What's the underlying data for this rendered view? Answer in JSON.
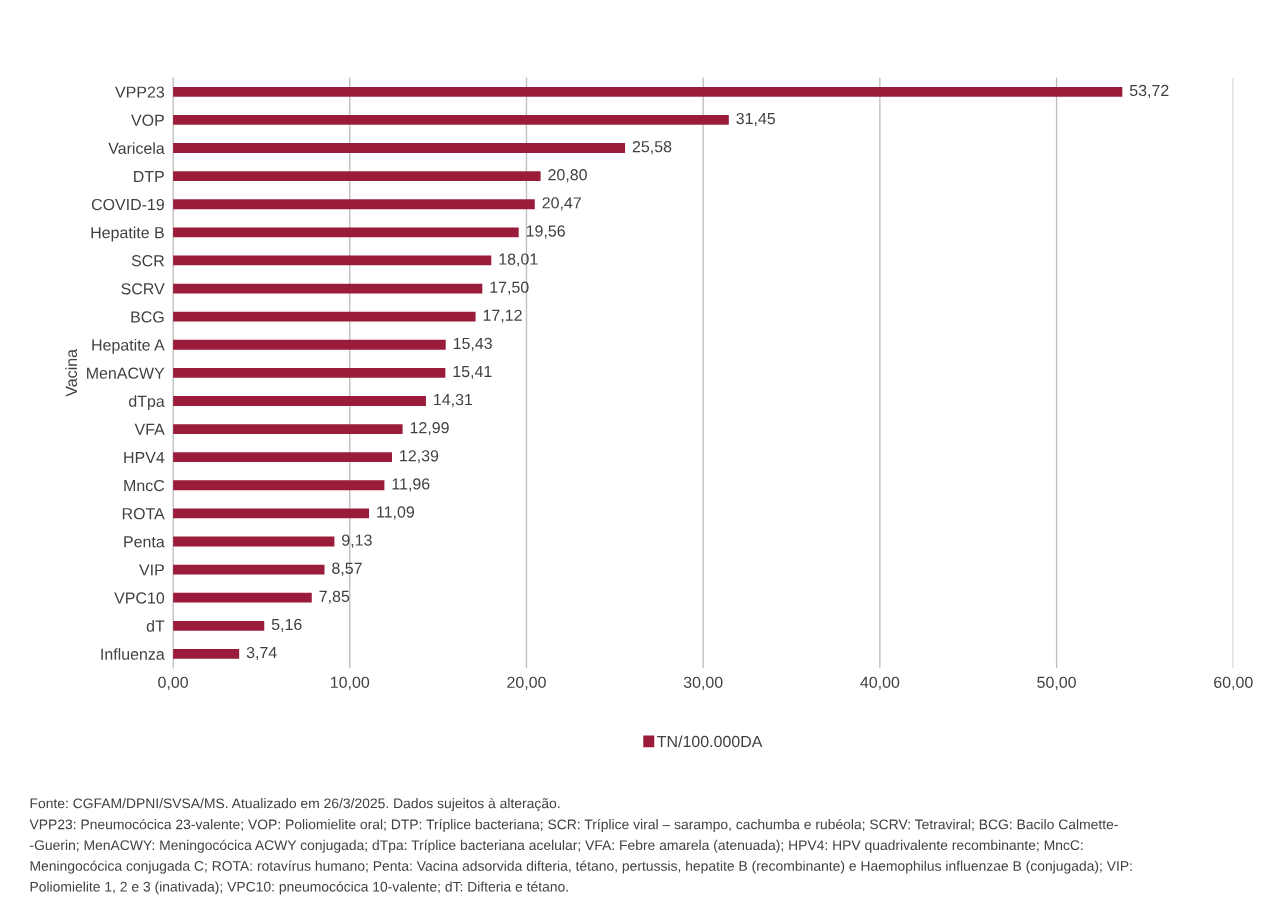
{
  "chart_data": {
    "type": "bar",
    "orientation": "horizontal",
    "ylabel": "Vacina",
    "categories": [
      "VPP23",
      "VOP",
      "Varicela",
      "DTP",
      "COVID-19",
      "Hepatite B",
      "SCR",
      "SCRV",
      "BCG",
      "Hepatite A",
      "MenACWY",
      "dTpa",
      "VFA",
      "HPV4",
      "MncC",
      "ROTA",
      "Penta",
      "VIP",
      "VPC10",
      "dT",
      "Influenza"
    ],
    "series": [
      {
        "name": "TN/100.000DA",
        "color": "#9b1b3a",
        "values": [
          53.72,
          31.45,
          25.58,
          20.8,
          20.47,
          19.56,
          18.01,
          17.5,
          17.12,
          15.43,
          15.41,
          14.31,
          12.99,
          12.39,
          11.96,
          11.09,
          9.13,
          8.57,
          7.85,
          5.16,
          3.74
        ],
        "value_labels": [
          "53,72",
          "31,45",
          "25,58",
          "20,80",
          "20,47",
          "19,56",
          "18,01",
          "17,50",
          "17,12",
          "15,43",
          "15,41",
          "14,31",
          "12,99",
          "12,39",
          "11,96",
          "11,09",
          "9,13",
          "8,57",
          "7,85",
          "5,16",
          "3,74"
        ]
      }
    ],
    "xlim": [
      0,
      60
    ],
    "xticks": [
      {
        "value": 0,
        "label": "0,00"
      },
      {
        "value": 10,
        "label": "10,00"
      },
      {
        "value": 20,
        "label": "20,00"
      },
      {
        "value": 30,
        "label": "30,00"
      },
      {
        "value": 40,
        "label": "40,00"
      },
      {
        "value": 50,
        "label": "50,00"
      },
      {
        "value": 60,
        "label": "60,00"
      }
    ],
    "grid": "x",
    "legend": "bottom",
    "annotations": [
      "Fonte: CGFAM/DPNI/SVSA/MS. Atualizado em 26/3/2025. Dados sujeitos à alteração.",
      "VPP23: Pneumocócica 23-valente; VOP: Poliomielite oral; DTP: Tríplice bacteriana; SCR: Tríplice viral – sarampo, cachumba e rubéola; SCRV: Tetraviral; BCG: Bacilo Calmette-\n-Guerin; MenACWY: Meningocócica ACWY conjugada; dTpa: Tríplice bacteriana acelular; VFA: Febre amarela (atenuada); HPV4: HPV quadrivalente recombinante; MncC:\nMeningocócica conjugada C; ROTA: rotavírus humano; Penta: Vacina adsorvida difteria, tétano, pertussis, hepatite B (recombinante) e Haemophilus influenzae B (conjugada); VIP:\nPoliomielite 1, 2 e 3 (inativada); VPC10: pneumocócica 10-valente; dT: Difteria e tétano."
    ]
  }
}
